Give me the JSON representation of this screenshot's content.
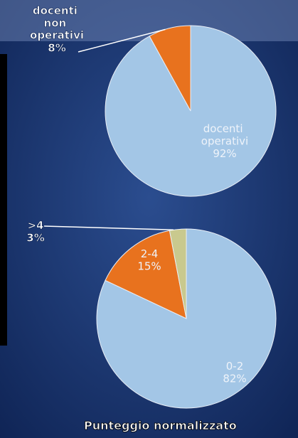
{
  "chart_data": [
    {
      "type": "pie",
      "categories": [
        "docenti operativi",
        "docenti non operativi"
      ],
      "values": [
        92,
        8
      ],
      "value_labels": [
        "92%",
        "8%"
      ],
      "colors": [
        "#a3c6e6",
        "#e8721e"
      ]
    },
    {
      "type": "pie",
      "title": "Punteggio normalizzato",
      "categories": [
        "0-2",
        "2-4",
        ">4"
      ],
      "values": [
        82,
        15,
        3
      ],
      "value_labels": [
        "82%",
        "15%",
        "3%"
      ],
      "colors": [
        "#a3c6e6",
        "#e8721e",
        "#c9c98e"
      ]
    }
  ]
}
